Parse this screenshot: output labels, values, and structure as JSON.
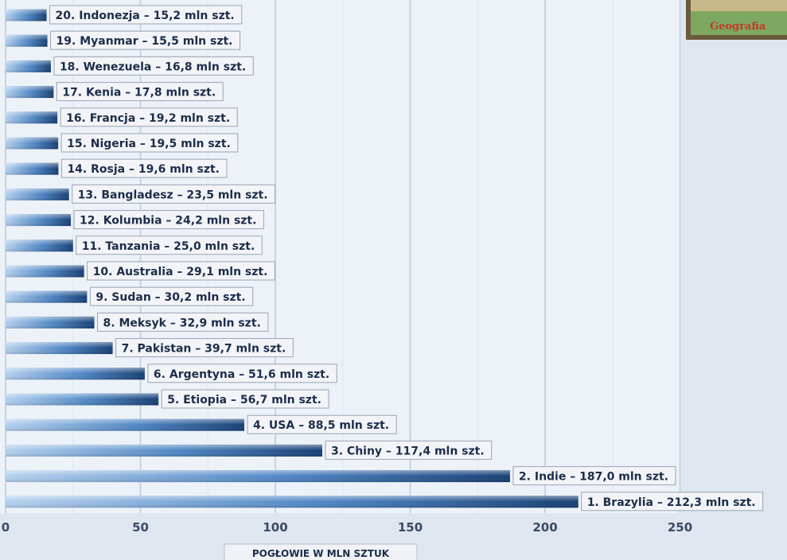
{
  "chart_data": {
    "type": "bar",
    "orientation": "horizontal",
    "unit_suffix": "mln szt.",
    "xlabel": "POGŁOWIE W MLN SZTUK",
    "xlim": [
      0,
      250
    ],
    "xticks": [
      0,
      50,
      100,
      150,
      200,
      250
    ],
    "xtick_labels": [
      "0",
      "50",
      "100",
      "150",
      "200",
      "250"
    ],
    "grid": true,
    "bars": [
      {
        "rank": "20.",
        "country": "Indonezja",
        "value": 15.2,
        "value_label": "15,2"
      },
      {
        "rank": "19.",
        "country": "Myanmar",
        "value": 15.5,
        "value_label": "15,5"
      },
      {
        "rank": "18.",
        "country": "Wenezuela",
        "value": 16.8,
        "value_label": "16,8"
      },
      {
        "rank": "17.",
        "country": "Kenia",
        "value": 17.8,
        "value_label": "17,8"
      },
      {
        "rank": "16.",
        "country": "Francja",
        "value": 19.2,
        "value_label": "19,2"
      },
      {
        "rank": "15.",
        "country": "Nigeria",
        "value": 19.5,
        "value_label": "19,5"
      },
      {
        "rank": "14.",
        "country": "Rosja",
        "value": 19.6,
        "value_label": "19,6"
      },
      {
        "rank": "13.",
        "country": "Bangladesz",
        "value": 23.5,
        "value_label": "23,5"
      },
      {
        "rank": "12.",
        "country": "Kolumbia",
        "value": 24.2,
        "value_label": "24,2"
      },
      {
        "rank": "11.",
        "country": "Tanzania",
        "value": 25.0,
        "value_label": "25,0"
      },
      {
        "rank": "10.",
        "country": "Australia",
        "value": 29.1,
        "value_label": "29,1"
      },
      {
        "rank": "9.",
        "country": "Sudan",
        "value": 30.2,
        "value_label": "30,2"
      },
      {
        "rank": "8.",
        "country": "Meksyk",
        "value": 32.9,
        "value_label": "32,9"
      },
      {
        "rank": "7.",
        "country": "Pakistan",
        "value": 39.7,
        "value_label": "39,7"
      },
      {
        "rank": "6.",
        "country": "Argentyna",
        "value": 51.6,
        "value_label": "51,6"
      },
      {
        "rank": "5.",
        "country": "Etiopia",
        "value": 56.7,
        "value_label": "56,7"
      },
      {
        "rank": "4.",
        "country": "USA",
        "value": 88.5,
        "value_label": "88,5"
      },
      {
        "rank": "3.",
        "country": "Chiny",
        "value": 117.4,
        "value_label": "117,4"
      },
      {
        "rank": "2.",
        "country": "Indie",
        "value": 187.0,
        "value_label": "187,0"
      },
      {
        "rank": "1.",
        "country": "Brazylia",
        "value": 212.3,
        "value_label": "212,3"
      }
    ]
  },
  "logo": {
    "text": "Geografia"
  },
  "colors": {
    "background": "#dfe6f0",
    "plot_area": "#edf2f8",
    "bar_dark": "#1d4f8c",
    "bar_light": "#9dc0e6",
    "label_box": "#f3f4f7",
    "label_border": "#9aa3b3"
  }
}
